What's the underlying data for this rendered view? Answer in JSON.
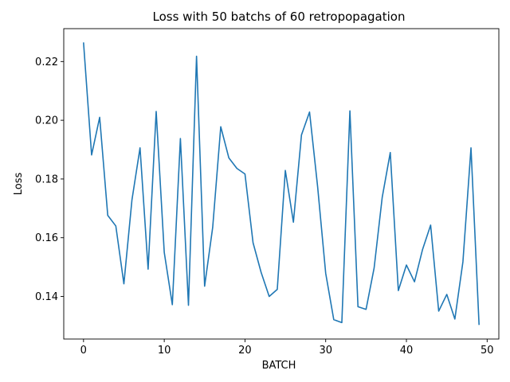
{
  "chart_data": {
    "type": "line",
    "title": "Loss with 50 batchs of 60 retropopagation",
    "xlabel": "BATCH",
    "ylabel": "Loss",
    "xlim": [
      -2.45,
      51.45
    ],
    "ylim": [
      0.1255,
      0.2312
    ],
    "xticks": [
      0,
      10,
      20,
      30,
      40,
      50
    ],
    "xtick_labels": [
      "0",
      "10",
      "20",
      "30",
      "40",
      "50"
    ],
    "yticks": [
      0.14,
      0.16,
      0.18,
      0.2,
      0.22
    ],
    "ytick_labels": [
      "0.14",
      "0.16",
      "0.18",
      "0.20",
      "0.22"
    ],
    "grid": false,
    "series": [
      {
        "color": "#1f77b4",
        "x": [
          0,
          1,
          2,
          3,
          4,
          5,
          6,
          7,
          8,
          9,
          10,
          11,
          12,
          13,
          14,
          15,
          16,
          17,
          18,
          19,
          20,
          21,
          22,
          23,
          24,
          25,
          26,
          27,
          28,
          29,
          30,
          31,
          32,
          33,
          34,
          35,
          36,
          37,
          38,
          39,
          40,
          41,
          42,
          43,
          44,
          45,
          46,
          47,
          48,
          49
        ],
        "y": [
          0.2265,
          0.1882,
          0.201,
          0.1676,
          0.164,
          0.1443,
          0.1729,
          0.1906,
          0.1493,
          0.203,
          0.155,
          0.1372,
          0.1938,
          0.137,
          0.2218,
          0.1435,
          0.1635,
          0.1978,
          0.1872,
          0.1836,
          0.1817,
          0.1583,
          0.1482,
          0.14,
          0.1424,
          0.1829,
          0.1653,
          0.195,
          0.2028,
          0.1774,
          0.1479,
          0.1321,
          0.1311,
          0.2032,
          0.1365,
          0.1356,
          0.1497,
          0.1737,
          0.189,
          0.142,
          0.1507,
          0.145,
          0.156,
          0.1643,
          0.135,
          0.1407,
          0.1323,
          0.1518,
          0.1906,
          0.1303
        ]
      }
    ]
  }
}
